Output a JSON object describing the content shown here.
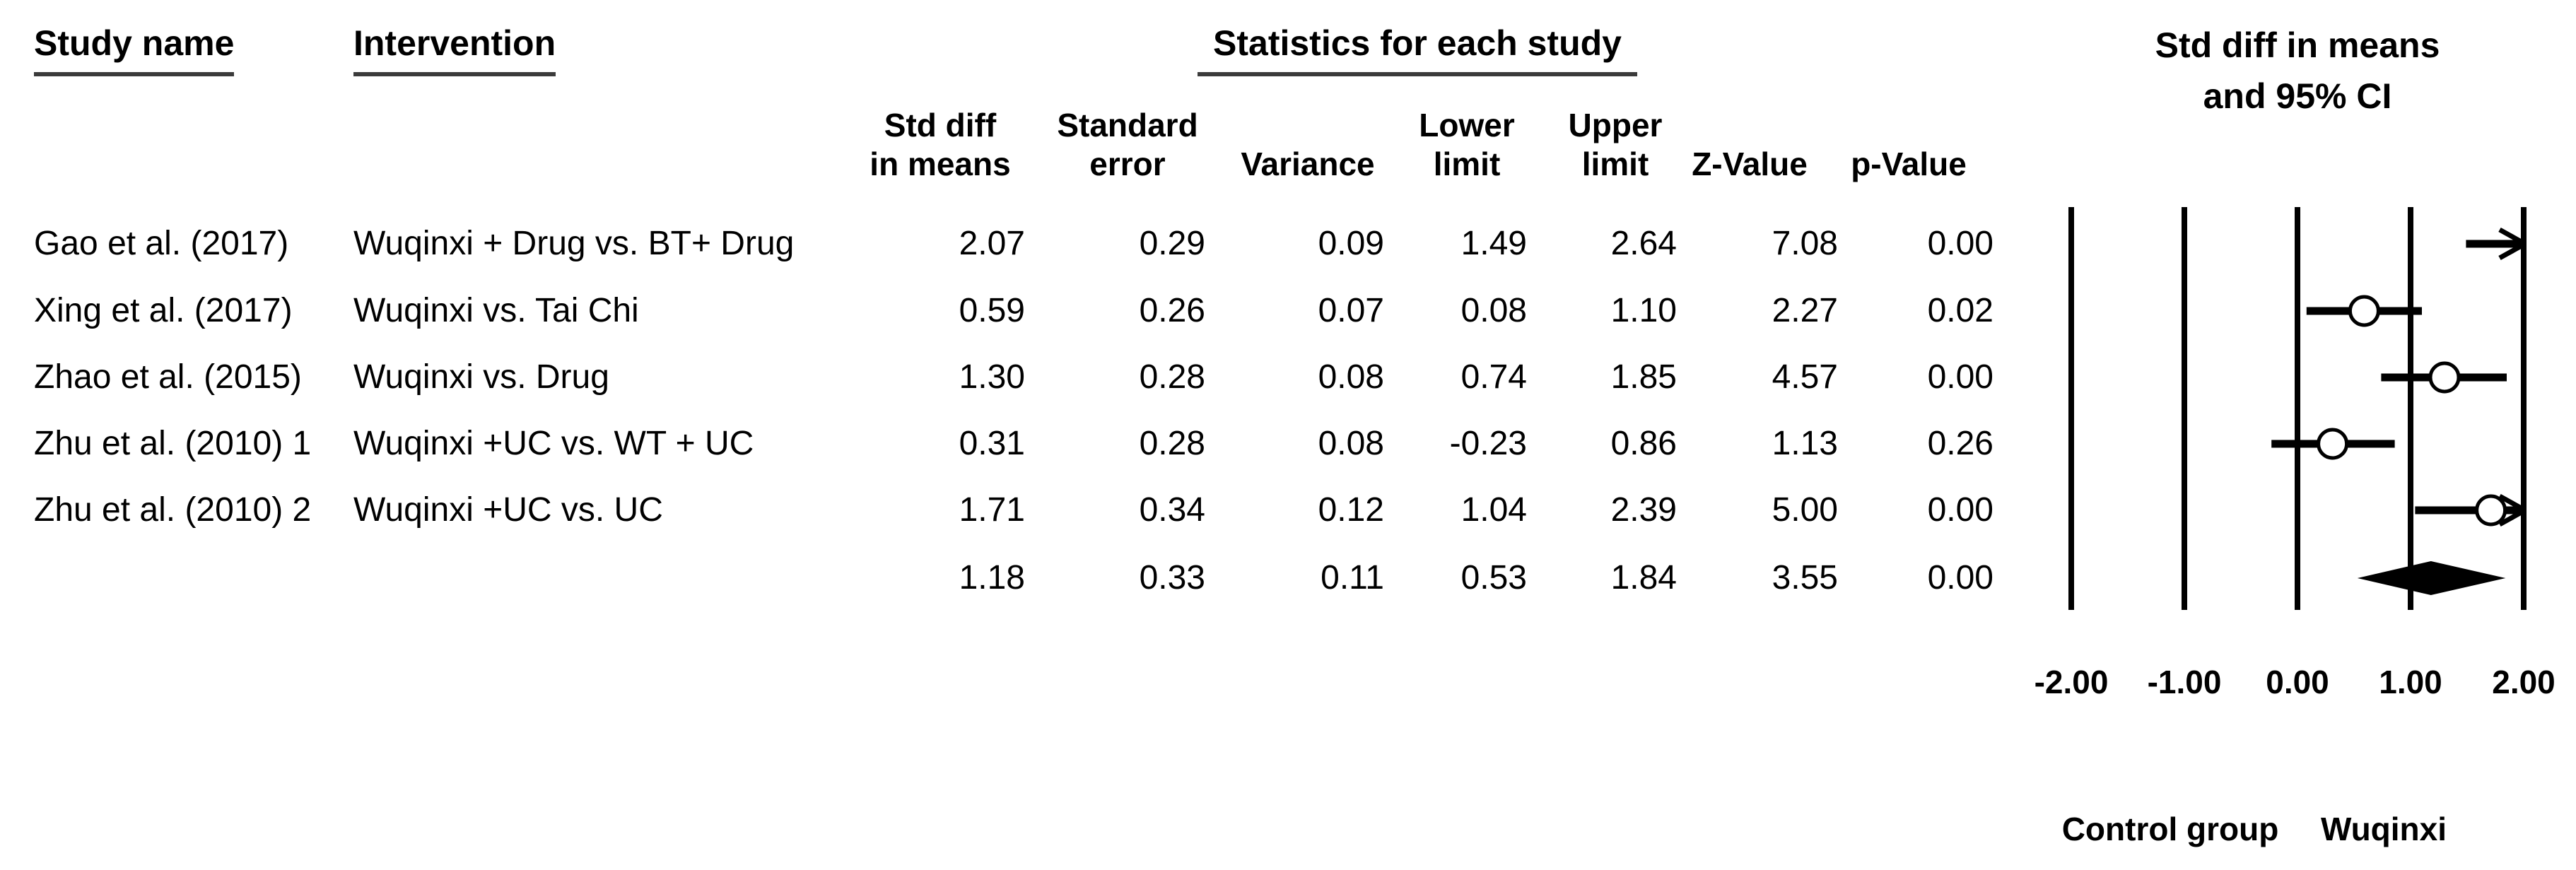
{
  "table": {
    "col_headers": {
      "study": "Study name",
      "intervention": "Intervention",
      "stats_group": "Statistics for each study"
    },
    "effect_header": {
      "line1": "Std diff in means",
      "line2": "and 95% CI"
    },
    "sub_headers": [
      {
        "line1": "Std diff",
        "line2": "in means"
      },
      {
        "line1": "Standard",
        "line2": "error"
      },
      {
        "line1": "",
        "line2": "Variance"
      },
      {
        "line1": "Lower",
        "line2": "limit"
      },
      {
        "line1": "Upper",
        "line2": "limit"
      },
      {
        "line1": "",
        "line2": "Z-Value"
      },
      {
        "line1": "",
        "line2": "p-Value"
      }
    ],
    "rows": [
      {
        "study": "Gao et al. (2017)",
        "intervention": "Wuqinxi + Drug vs. BT+ Drug",
        "std_diff": "2.07",
        "std_err": "0.29",
        "variance": "0.09",
        "lower": "1.49",
        "upper": "2.64",
        "z": "7.08",
        "p": "0.00"
      },
      {
        "study": "Xing et al. (2017)",
        "intervention": "Wuqinxi vs. Tai Chi",
        "std_diff": "0.59",
        "std_err": "0.26",
        "variance": "0.07",
        "lower": "0.08",
        "upper": "1.10",
        "z": "2.27",
        "p": "0.02"
      },
      {
        "study": "Zhao et al. (2015)",
        "intervention": "Wuqinxi vs. Drug",
        "std_diff": "1.30",
        "std_err": "0.28",
        "variance": "0.08",
        "lower": "0.74",
        "upper": "1.85",
        "z": "4.57",
        "p": "0.00"
      },
      {
        "study": "Zhu et al. (2010) 1",
        "intervention": "Wuqinxi +UC vs. WT + UC",
        "std_diff": "0.31",
        "std_err": "0.28",
        "variance": "0.08",
        "lower": "-0.23",
        "upper": "0.86",
        "z": "1.13",
        "p": "0.26"
      },
      {
        "study": "Zhu et al. (2010) 2",
        "intervention": "Wuqinxi +UC vs. UC",
        "std_diff": "1.71",
        "std_err": "0.34",
        "variance": "0.12",
        "lower": "1.04",
        "upper": "2.39",
        "z": "5.00",
        "p": "0.00"
      },
      {
        "study": "",
        "intervention": "",
        "std_diff": "1.18",
        "std_err": "0.33",
        "variance": "0.11",
        "lower": "0.53",
        "upper": "1.84",
        "z": "3.55",
        "p": "0.00"
      }
    ]
  },
  "chart_data": {
    "type": "forest",
    "title": "Std diff in means and 95% CI",
    "x_axis": {
      "min": -2,
      "max": 2,
      "tick_values": [
        -2,
        -1,
        0,
        1,
        2
      ],
      "tick_labels": [
        "-2.00",
        "-1.00",
        "0.00",
        "1.00",
        "2.00"
      ]
    },
    "studies": [
      {
        "name": "Gao et al. (2017)",
        "value": 2.07,
        "lower": 1.49,
        "upper": 2.64
      },
      {
        "name": "Xing et al. (2017)",
        "value": 0.59,
        "lower": 0.08,
        "upper": 1.1
      },
      {
        "name": "Zhao et al. (2015)",
        "value": 1.3,
        "lower": 0.74,
        "upper": 1.85
      },
      {
        "name": "Zhu et al. (2010) 1",
        "value": 0.31,
        "lower": -0.23,
        "upper": 0.86
      },
      {
        "name": "Zhu et al. (2010) 2",
        "value": 1.71,
        "lower": 1.04,
        "upper": 2.39
      }
    ],
    "summary": {
      "value": 1.18,
      "lower": 0.53,
      "upper": 1.84
    },
    "favours_left": "Control group",
    "favours_right": "Wuqinxi",
    "marker_color": "#000000",
    "grid_on": true
  }
}
